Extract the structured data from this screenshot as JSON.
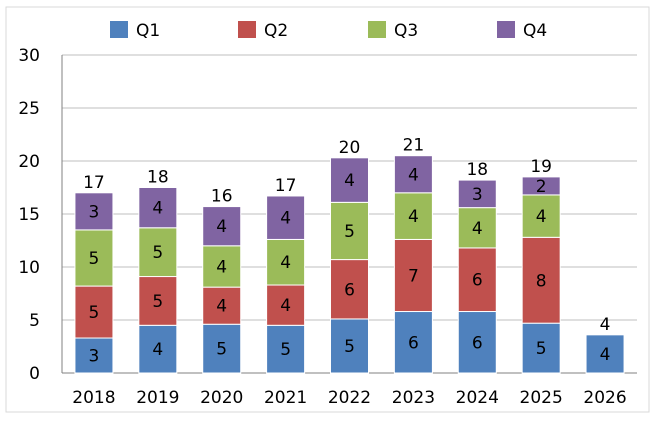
{
  "chart_data": {
    "type": "bar",
    "stacked": true,
    "title": "",
    "xlabel": "",
    "ylabel": "",
    "ylim": [
      0,
      30
    ],
    "yticks": [
      0,
      5,
      10,
      15,
      20,
      25,
      30
    ],
    "grid": true,
    "legend_position": "top",
    "categories": [
      "2018",
      "2019",
      "2020",
      "2021",
      "2022",
      "2023",
      "2024",
      "2025",
      "2026"
    ],
    "series": [
      {
        "name": "Q1",
        "color": "#4f81bd",
        "values": [
          3.3,
          4.5,
          4.6,
          4.5,
          5.1,
          5.8,
          5.8,
          4.7,
          3.6
        ],
        "labels": [
          "3",
          "4",
          "5",
          "5",
          "5",
          "6",
          "6",
          "5",
          "4"
        ]
      },
      {
        "name": "Q2",
        "color": "#c0504d",
        "values": [
          4.9,
          4.6,
          3.5,
          3.8,
          5.6,
          6.8,
          6.0,
          8.1,
          0
        ],
        "labels": [
          "5",
          "5",
          "4",
          "4",
          "6",
          "7",
          "6",
          "8",
          ""
        ]
      },
      {
        "name": "Q3",
        "color": "#9bbb59",
        "values": [
          5.3,
          4.6,
          3.9,
          4.3,
          5.4,
          4.4,
          3.8,
          4.0,
          0
        ],
        "labels": [
          "5",
          "5",
          "4",
          "4",
          "5",
          "4",
          "4",
          "4",
          ""
        ]
      },
      {
        "name": "Q4",
        "color": "#8064a2",
        "values": [
          3.5,
          3.8,
          3.7,
          4.1,
          4.2,
          3.5,
          2.6,
          1.7,
          0
        ],
        "labels": [
          "3",
          "4",
          "4",
          "4",
          "4",
          "4",
          "3",
          "2",
          ""
        ]
      }
    ],
    "totals": [
      "17",
      "18",
      "16",
      "17",
      "20",
      "21",
      "18",
      "19",
      "4"
    ]
  }
}
